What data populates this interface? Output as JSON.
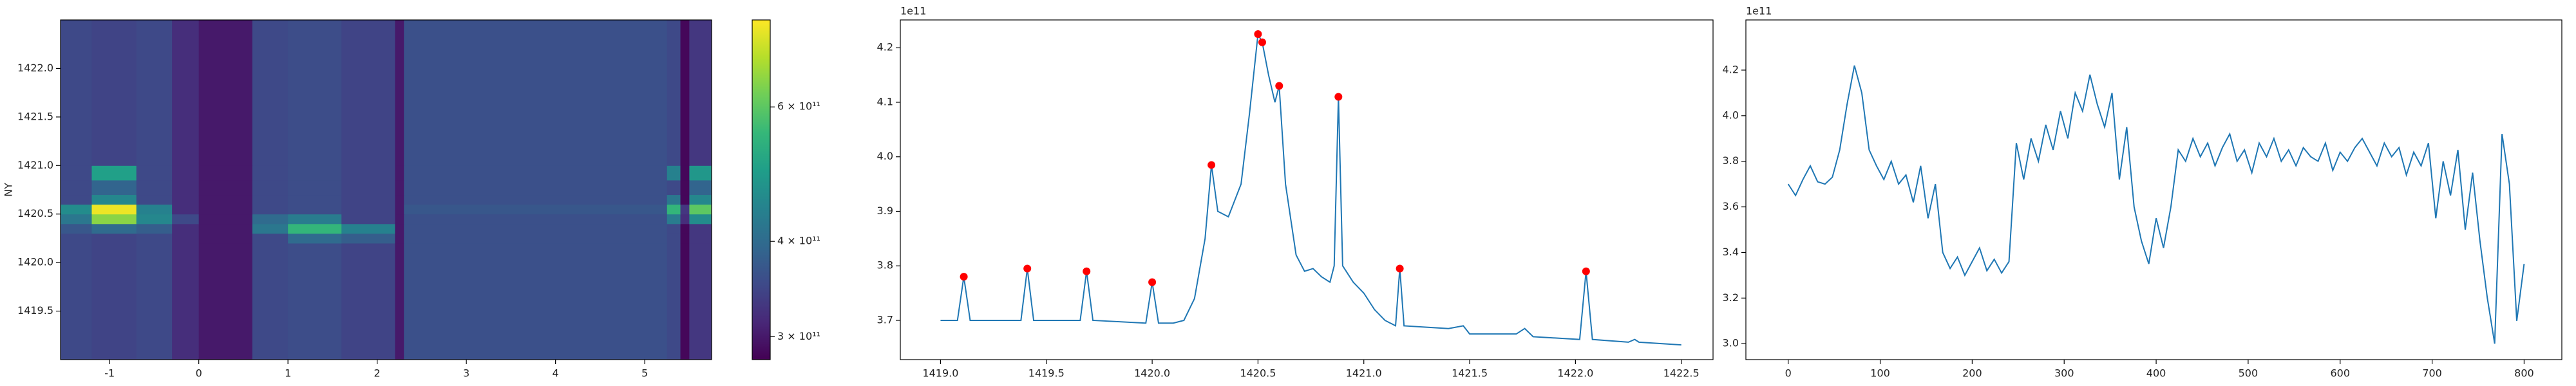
{
  "chart_data": [
    {
      "type": "heatmap",
      "y_label": "NY",
      "x_edges": [
        -1.55,
        -1.2,
        -0.7,
        -0.3,
        0.0,
        0.6,
        1.0,
        1.6,
        2.2,
        2.3,
        5.25,
        5.4,
        5.5,
        5.75
      ],
      "y_edges": [
        1419.0,
        1420.2,
        1420.3,
        1420.4,
        1420.5,
        1420.6,
        1420.7,
        1420.85,
        1421.0,
        1422.5
      ],
      "z": [
        [
          350000000000.0,
          345000000000.0,
          350000000000.0,
          320000000000.0,
          300000000000.0,
          350000000000.0,
          355000000000.0,
          345000000000.0,
          300000000000.0,
          360000000000.0,
          350000000000.0,
          285000000000.0,
          330000000000.0
        ],
        [
          350000000000.0,
          345000000000.0,
          350000000000.0,
          320000000000.0,
          300000000000.0,
          350000000000.0,
          400000000000.0,
          380000000000.0,
          300000000000.0,
          360000000000.0,
          350000000000.0,
          285000000000.0,
          330000000000.0
        ],
        [
          370000000000.0,
          400000000000.0,
          380000000000.0,
          320000000000.0,
          300000000000.0,
          420000000000.0,
          550000000000.0,
          440000000000.0,
          300000000000.0,
          360000000000.0,
          350000000000.0,
          285000000000.0,
          330000000000.0
        ],
        [
          420000000000.0,
          650000000000.0,
          450000000000.0,
          350000000000.0,
          300000000000.0,
          400000000000.0,
          430000000000.0,
          345000000000.0,
          300000000000.0,
          360000000000.0,
          430000000000.0,
          320000000000.0,
          460000000000.0
        ],
        [
          460000000000.0,
          760000000000.0,
          440000000000.0,
          320000000000.0,
          300000000000.0,
          350000000000.0,
          355000000000.0,
          345000000000.0,
          300000000000.0,
          370000000000.0,
          550000000000.0,
          330000000000.0,
          600000000000.0
        ],
        [
          350000000000.0,
          450000000000.0,
          350000000000.0,
          320000000000.0,
          300000000000.0,
          350000000000.0,
          355000000000.0,
          345000000000.0,
          300000000000.0,
          360000000000.0,
          420000000000.0,
          285000000000.0,
          450000000000.0
        ],
        [
          350000000000.0,
          390000000000.0,
          350000000000.0,
          320000000000.0,
          300000000000.0,
          350000000000.0,
          355000000000.0,
          345000000000.0,
          300000000000.0,
          360000000000.0,
          350000000000.0,
          285000000000.0,
          390000000000.0
        ],
        [
          350000000000.0,
          500000000000.0,
          350000000000.0,
          320000000000.0,
          300000000000.0,
          350000000000.0,
          355000000000.0,
          345000000000.0,
          300000000000.0,
          360000000000.0,
          440000000000.0,
          285000000000.0,
          480000000000.0
        ],
        [
          350000000000.0,
          345000000000.0,
          350000000000.0,
          320000000000.0,
          300000000000.0,
          350000000000.0,
          355000000000.0,
          345000000000.0,
          300000000000.0,
          360000000000.0,
          350000000000.0,
          285000000000.0,
          330000000000.0
        ]
      ],
      "xlim": [
        -1.55,
        5.75
      ],
      "ylim": [
        1419.0,
        1422.5
      ],
      "xticks": [
        -1,
        0,
        1,
        2,
        3,
        4,
        5
      ],
      "yticks": [
        {
          "value": 1419.5,
          "label": "1419.5"
        },
        {
          "value": 1420,
          "label": "1420.0"
        },
        {
          "value": 1420.5,
          "label": "1420.5"
        },
        {
          "value": 1421,
          "label": "1421.0"
        },
        {
          "value": 1421.5,
          "label": "1421.5"
        },
        {
          "value": 1422,
          "label": "1422.0"
        }
      ],
      "colormap": "viridis",
      "color_scale": "log",
      "clim": [
        280000000000.0,
        780000000000.0
      ],
      "cticks": [
        {
          "value": 300000000000.0,
          "label": "3 × 10¹¹"
        },
        {
          "value": 400000000000.0,
          "label": "4 × 10¹¹"
        },
        {
          "value": 600000000000.0,
          "label": "6 × 10¹¹"
        }
      ]
    },
    {
      "type": "line",
      "color": "#1f77b4",
      "offset_text": "1e11",
      "x": [
        1419.0,
        1419.08,
        1419.11,
        1419.14,
        1419.38,
        1419.41,
        1419.44,
        1419.66,
        1419.69,
        1419.72,
        1419.97,
        1420.0,
        1420.03,
        1420.1,
        1420.15,
        1420.2,
        1420.25,
        1420.28,
        1420.31,
        1420.36,
        1420.42,
        1420.46,
        1420.5,
        1420.52,
        1420.55,
        1420.58,
        1420.6,
        1420.63,
        1420.68,
        1420.72,
        1420.76,
        1420.8,
        1420.84,
        1420.86,
        1420.88,
        1420.9,
        1420.95,
        1421.0,
        1421.05,
        1421.1,
        1421.15,
        1421.17,
        1421.19,
        1421.4,
        1421.47,
        1421.5,
        1421.72,
        1421.76,
        1421.8,
        1422.02,
        1422.05,
        1422.08,
        1422.25,
        1422.28,
        1422.3,
        1422.5
      ],
      "values": [
        3.7,
        3.7,
        3.78,
        3.7,
        3.7,
        3.795,
        3.7,
        3.7,
        3.79,
        3.7,
        3.695,
        3.77,
        3.695,
        3.695,
        3.7,
        3.74,
        3.85,
        3.985,
        3.9,
        3.89,
        3.95,
        4.08,
        4.225,
        4.21,
        4.15,
        4.1,
        4.13,
        3.95,
        3.82,
        3.79,
        3.795,
        3.78,
        3.77,
        3.8,
        4.11,
        3.8,
        3.77,
        3.75,
        3.72,
        3.7,
        3.69,
        3.795,
        3.69,
        3.685,
        3.69,
        3.675,
        3.675,
        3.685,
        3.67,
        3.665,
        3.79,
        3.665,
        3.66,
        3.665,
        3.66,
        3.655
      ],
      "peaks": {
        "color": "red",
        "x": [
          1419.11,
          1419.41,
          1419.69,
          1420.0,
          1420.28,
          1420.5,
          1420.52,
          1420.6,
          1420.88,
          1421.17,
          1422.05
        ],
        "values": [
          3.78,
          3.795,
          3.79,
          3.77,
          3.985,
          4.225,
          4.21,
          4.13,
          4.11,
          3.795,
          3.79
        ]
      },
      "xlim": [
        1418.81,
        1422.65
      ],
      "ylim": [
        3.628,
        4.251
      ],
      "xticks": [
        {
          "value": 1419,
          "label": "1419.0"
        },
        {
          "value": 1419.5,
          "label": "1419.5"
        },
        {
          "value": 1420,
          "label": "1420.0"
        },
        {
          "value": 1420.5,
          "label": "1420.5"
        },
        {
          "value": 1421,
          "label": "1421.0"
        },
        {
          "value": 1421.5,
          "label": "1421.5"
        },
        {
          "value": 1422,
          "label": "1422.0"
        },
        {
          "value": 1422.5,
          "label": "1422.5"
        }
      ],
      "yticks": [
        3.7,
        3.8,
        3.9,
        {
          "value": 4,
          "label": "4.0"
        },
        4.1,
        4.2
      ]
    },
    {
      "type": "line",
      "color": "#1f77b4",
      "offset_text": "1e11",
      "x": [
        0,
        8,
        16,
        24,
        32,
        40,
        48,
        56,
        64,
        72,
        80,
        88,
        96,
        104,
        112,
        120,
        128,
        136,
        144,
        152,
        160,
        168,
        176,
        184,
        192,
        200,
        208,
        216,
        224,
        232,
        240,
        248,
        256,
        264,
        272,
        280,
        288,
        296,
        304,
        312,
        320,
        328,
        336,
        344,
        352,
        360,
        368,
        376,
        384,
        392,
        400,
        408,
        416,
        424,
        432,
        440,
        448,
        456,
        464,
        472,
        480,
        488,
        496,
        504,
        512,
        520,
        528,
        536,
        544,
        552,
        560,
        568,
        576,
        584,
        592,
        600,
        608,
        616,
        624,
        632,
        640,
        648,
        656,
        664,
        672,
        680,
        688,
        696,
        704,
        712,
        720,
        728,
        736,
        744,
        752,
        760,
        768,
        776,
        784,
        792,
        800
      ],
      "values": [
        3.7,
        3.65,
        3.72,
        3.78,
        3.71,
        3.7,
        3.73,
        3.85,
        4.05,
        4.22,
        4.1,
        3.85,
        3.78,
        3.72,
        3.8,
        3.7,
        3.74,
        3.62,
        3.78,
        3.55,
        3.7,
        3.4,
        3.33,
        3.38,
        3.3,
        3.36,
        3.42,
        3.32,
        3.37,
        3.31,
        3.36,
        3.88,
        3.72,
        3.9,
        3.8,
        3.96,
        3.85,
        4.02,
        3.9,
        4.1,
        4.02,
        4.18,
        4.05,
        3.95,
        4.1,
        3.72,
        3.95,
        3.6,
        3.45,
        3.35,
        3.55,
        3.42,
        3.6,
        3.85,
        3.8,
        3.9,
        3.82,
        3.88,
        3.78,
        3.86,
        3.92,
        3.8,
        3.85,
        3.75,
        3.88,
        3.82,
        3.9,
        3.8,
        3.85,
        3.78,
        3.86,
        3.82,
        3.8,
        3.88,
        3.76,
        3.84,
        3.8,
        3.86,
        3.9,
        3.84,
        3.78,
        3.88,
        3.82,
        3.86,
        3.74,
        3.84,
        3.78,
        3.88,
        3.55,
        3.8,
        3.65,
        3.85,
        3.5,
        3.75,
        3.45,
        3.2,
        3.0,
        3.92,
        3.7,
        3.1,
        3.35
      ],
      "xlim": [
        -46,
        841
      ],
      "ylim": [
        2.93,
        4.42
      ],
      "xticks": [
        0,
        100,
        200,
        300,
        400,
        500,
        600,
        700,
        800
      ],
      "yticks": [
        {
          "value": 3,
          "label": "3.0"
        },
        3.2,
        3.4,
        3.6,
        3.8,
        {
          "value": 4,
          "label": "4.0"
        },
        4.2
      ]
    }
  ]
}
